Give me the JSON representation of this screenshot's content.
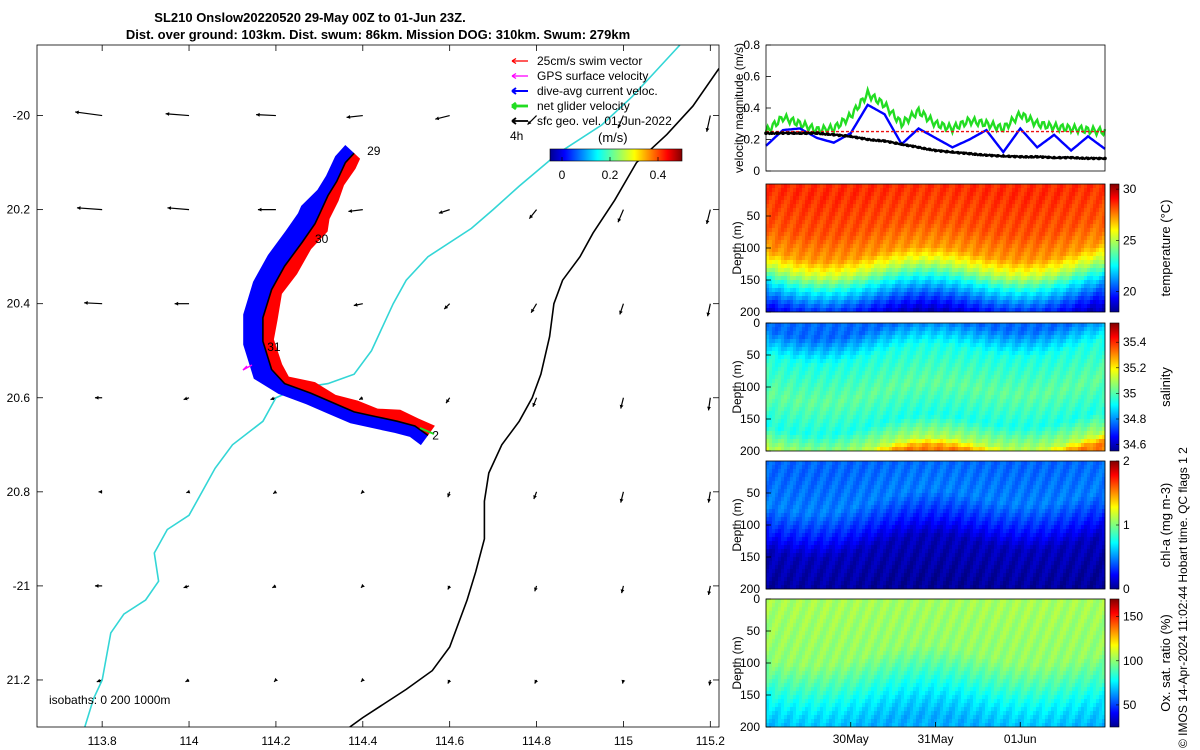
{
  "title": {
    "line1": "SL210 Onslow20220520 29-May 00Z to 01-Jun 23Z.",
    "line2": "Dist. over ground: 103km. Dist. swum: 86km. Mission DOG: 310km. Swum: 279km"
  },
  "side_text": "© IMOS 14-Apr-2024 11:02:44 Hobart time. QC flags 1  2",
  "colors": {
    "swim": "#ff0000",
    "gps": "#ff00ff",
    "dive": "#0000ff",
    "net": "#22dd22",
    "geo": "#000000",
    "isobath_shallow": "#33d6d6",
    "isobath_deep": "#000000",
    "ribbon_blue": "#0000ff",
    "ribbon_red": "#ff0000"
  },
  "chart_data": [
    {
      "type": "map",
      "xlim": [
        113.65,
        115.22
      ],
      "ylim": [
        -21.3,
        -19.85
      ],
      "x_ticks": [
        113.8,
        114,
        114.2,
        114.4,
        114.6,
        114.8,
        115,
        115.2
      ],
      "x_tick_labels": [
        "113.8",
        "114",
        "114.2",
        "114.4",
        "114.6",
        "114.8",
        "115",
        "115.2"
      ],
      "y_ticks": [
        -20,
        -20.2,
        -20.4,
        -20.6,
        -20.8,
        -21,
        -21.2
      ],
      "y_tick_labels": [
        "-20",
        "20.2",
        "20.4",
        "20.6",
        "20.8",
        "-21",
        "21.2"
      ],
      "legend": {
        "placement": "top-right",
        "entries": [
          "25cm/s swim vector",
          "GPS surface velocity",
          "dive-avg current veloc.",
          "net glider velocity",
          "sfc geo. vel. 01-Jun-2022"
        ],
        "interval": "4h",
        "colorbar_unit": "(m/s)",
        "colorbar_ticks": [
          0,
          0.2,
          0.4
        ],
        "colorbar_tick_labels": [
          "0",
          "0.2",
          "0.4"
        ],
        "colorbar_range": [
          -0.05,
          0.5
        ]
      },
      "isobath_label": "isobaths: 0   200   1000m",
      "day_labels": [
        {
          "text": "29",
          "lon": 114.41,
          "lat": -20.075
        },
        {
          "text": "30",
          "lon": 114.29,
          "lat": -20.262
        },
        {
          "text": "31",
          "lon": 114.18,
          "lat": -20.492
        },
        {
          "text": "2",
          "lon": 114.56,
          "lat": -20.68
        }
      ],
      "track": [
        {
          "lon": 114.38,
          "lat": -20.08
        },
        {
          "lon": 114.36,
          "lat": -20.1
        },
        {
          "lon": 114.34,
          "lat": -20.14
        },
        {
          "lon": 114.32,
          "lat": -20.17
        },
        {
          "lon": 114.3,
          "lat": -20.21
        },
        {
          "lon": 114.29,
          "lat": -20.23
        },
        {
          "lon": 114.26,
          "lat": -20.27
        },
        {
          "lon": 114.22,
          "lat": -20.32
        },
        {
          "lon": 114.19,
          "lat": -20.37
        },
        {
          "lon": 114.17,
          "lat": -20.43
        },
        {
          "lon": 114.17,
          "lat": -20.48
        },
        {
          "lon": 114.19,
          "lat": -20.54
        },
        {
          "lon": 114.22,
          "lat": -20.57
        },
        {
          "lon": 114.28,
          "lat": -20.59
        },
        {
          "lon": 114.33,
          "lat": -20.61
        },
        {
          "lon": 114.38,
          "lat": -20.63
        },
        {
          "lon": 114.43,
          "lat": -20.64
        },
        {
          "lon": 114.48,
          "lat": -20.65
        },
        {
          "lon": 114.52,
          "lat": -20.66
        },
        {
          "lon": 114.55,
          "lat": -20.68
        }
      ],
      "isobath_200m": [
        {
          "lon": 115.13,
          "lat": -19.85
        },
        {
          "lon": 115.08,
          "lat": -19.9
        },
        {
          "lon": 115.02,
          "lat": -19.96
        },
        {
          "lon": 114.95,
          "lat": -20.02
        },
        {
          "lon": 114.85,
          "lat": -20.08
        },
        {
          "lon": 114.76,
          "lat": -20.15
        },
        {
          "lon": 114.7,
          "lat": -20.2
        },
        {
          "lon": 114.65,
          "lat": -20.24
        },
        {
          "lon": 114.55,
          "lat": -20.3
        },
        {
          "lon": 114.5,
          "lat": -20.35
        },
        {
          "lon": 114.47,
          "lat": -20.4
        },
        {
          "lon": 114.42,
          "lat": -20.5
        },
        {
          "lon": 114.38,
          "lat": -20.55
        },
        {
          "lon": 114.32,
          "lat": -20.57
        },
        {
          "lon": 114.25,
          "lat": -20.58
        },
        {
          "lon": 114.2,
          "lat": -20.6
        },
        {
          "lon": 114.17,
          "lat": -20.65
        },
        {
          "lon": 114.1,
          "lat": -20.7
        },
        {
          "lon": 114.06,
          "lat": -20.75
        },
        {
          "lon": 114.03,
          "lat": -20.8
        },
        {
          "lon": 114.0,
          "lat": -20.85
        },
        {
          "lon": 113.95,
          "lat": -20.88
        },
        {
          "lon": 113.92,
          "lat": -20.93
        },
        {
          "lon": 113.93,
          "lat": -20.99
        },
        {
          "lon": 113.9,
          "lat": -21.03
        },
        {
          "lon": 113.85,
          "lat": -21.06
        },
        {
          "lon": 113.82,
          "lat": -21.1
        },
        {
          "lon": 113.81,
          "lat": -21.15
        },
        {
          "lon": 113.8,
          "lat": -21.2
        },
        {
          "lon": 113.78,
          "lat": -21.24
        },
        {
          "lon": 113.76,
          "lat": -21.3
        }
      ],
      "isobath_1000m": [
        {
          "lon": 115.22,
          "lat": -19.9
        },
        {
          "lon": 115.16,
          "lat": -19.98
        },
        {
          "lon": 115.1,
          "lat": -20.04
        },
        {
          "lon": 115.03,
          "lat": -20.1
        },
        {
          "lon": 114.98,
          "lat": -20.18
        },
        {
          "lon": 114.93,
          "lat": -20.25
        },
        {
          "lon": 114.9,
          "lat": -20.3
        },
        {
          "lon": 114.86,
          "lat": -20.35
        },
        {
          "lon": 114.84,
          "lat": -20.4
        },
        {
          "lon": 114.83,
          "lat": -20.47
        },
        {
          "lon": 114.81,
          "lat": -20.55
        },
        {
          "lon": 114.79,
          "lat": -20.6
        },
        {
          "lon": 114.76,
          "lat": -20.65
        },
        {
          "lon": 114.72,
          "lat": -20.7
        },
        {
          "lon": 114.69,
          "lat": -20.76
        },
        {
          "lon": 114.68,
          "lat": -20.82
        },
        {
          "lon": 114.68,
          "lat": -20.9
        },
        {
          "lon": 114.66,
          "lat": -20.97
        },
        {
          "lon": 114.64,
          "lat": -21.03
        },
        {
          "lon": 114.62,
          "lat": -21.08
        },
        {
          "lon": 114.6,
          "lat": -21.13
        },
        {
          "lon": 114.56,
          "lat": -21.18
        },
        {
          "lon": 114.5,
          "lat": -21.22
        },
        {
          "lon": 114.45,
          "lat": -21.25
        },
        {
          "lon": 114.4,
          "lat": -21.28
        },
        {
          "lon": 114.37,
          "lat": -21.3
        }
      ],
      "vector_field": {
        "lons": [
          113.8,
          114.0,
          114.2,
          114.4,
          114.6,
          114.8,
          115.0,
          115.2
        ],
        "lats": [
          -20.0,
          -20.2,
          -20.4,
          -20.6,
          -20.8,
          -21.0,
          -21.2
        ],
        "u": [
          [
            -0.15,
            -0.13,
            -0.11,
            -0.09,
            -0.08,
            -0.05,
            -0.03,
            -0.02
          ],
          [
            -0.14,
            -0.12,
            -0.1,
            -0.08,
            -0.06,
            -0.04,
            -0.03,
            -0.02
          ],
          [
            -0.1,
            -0.08,
            -0.06,
            -0.05,
            -0.03,
            -0.03,
            -0.02,
            -0.015
          ],
          [
            -0.04,
            -0.03,
            -0.03,
            -0.02,
            -0.02,
            -0.02,
            -0.015,
            -0.01
          ],
          [
            -0.02,
            -0.015,
            -0.015,
            -0.01,
            -0.01,
            -0.015,
            -0.015,
            -0.01
          ],
          [
            -0.04,
            -0.03,
            -0.02,
            -0.01,
            -0.01,
            -0.01,
            -0.01,
            -0.01
          ],
          [
            -0.03,
            -0.02,
            -0.01,
            -0.01,
            -0.01,
            -0.01,
            -0.005,
            -0.005
          ]
        ],
        "v": [
          [
            0.02,
            0.01,
            0.005,
            -0.01,
            -0.02,
            -0.05,
            -0.07,
            -0.09
          ],
          [
            0.01,
            0.01,
            0.0,
            -0.01,
            -0.02,
            -0.05,
            -0.07,
            -0.08
          ],
          [
            0.005,
            0.0,
            -0.005,
            -0.01,
            -0.03,
            -0.05,
            -0.06,
            -0.07
          ],
          [
            0.0,
            -0.01,
            -0.01,
            -0.01,
            -0.03,
            -0.05,
            -0.06,
            -0.07
          ],
          [
            0.0,
            -0.005,
            -0.01,
            -0.01,
            -0.03,
            -0.04,
            -0.06,
            -0.06
          ],
          [
            0.0,
            -0.01,
            -0.01,
            -0.01,
            -0.02,
            -0.03,
            -0.04,
            -0.05
          ],
          [
            -0.01,
            -0.01,
            -0.01,
            -0.01,
            -0.02,
            -0.02,
            -0.02,
            -0.03
          ]
        ]
      }
    },
    {
      "type": "line",
      "ylabel": "velocity magnitude (m/s)",
      "ylim": [
        0,
        0.8
      ],
      "y_ticks": [
        0,
        0.2,
        0.4,
        0.6,
        0.8
      ],
      "y_tick_labels": [
        "0",
        "0.2",
        "0.4",
        "0.6",
        "0.8"
      ],
      "xlim": [
        29.0,
        33.0
      ],
      "x": [
        29.0,
        29.2,
        29.4,
        29.6,
        29.8,
        30.0,
        30.2,
        30.4,
        30.6,
        30.8,
        31.0,
        31.2,
        31.4,
        31.6,
        31.8,
        32.0,
        32.2,
        32.4,
        32.6,
        32.8,
        33.0
      ],
      "series": [
        {
          "color": "#22dd22",
          "values": [
            0.25,
            0.34,
            0.3,
            0.26,
            0.27,
            0.35,
            0.49,
            0.42,
            0.3,
            0.38,
            0.3,
            0.27,
            0.32,
            0.3,
            0.27,
            0.36,
            0.3,
            0.28,
            0.27,
            0.26,
            0.25
          ]
        },
        {
          "color": "#0000ff",
          "values": [
            0.16,
            0.26,
            0.27,
            0.21,
            0.18,
            0.24,
            0.42,
            0.36,
            0.17,
            0.27,
            0.21,
            0.15,
            0.2,
            0.26,
            0.12,
            0.27,
            0.15,
            0.23,
            0.13,
            0.22,
            0.14
          ]
        },
        {
          "color": "#ee1111",
          "values": [
            0.25,
            0.25,
            0.25,
            0.25,
            0.25,
            0.25,
            0.25,
            0.25,
            0.25,
            0.25,
            0.25,
            0.25,
            0.25,
            0.25,
            0.25,
            0.25,
            0.25,
            0.25,
            0.25,
            0.25,
            0.25
          ]
        },
        {
          "color": "#000000",
          "values": [
            0.24,
            0.24,
            0.24,
            0.24,
            0.23,
            0.22,
            0.2,
            0.19,
            0.17,
            0.15,
            0.13,
            0.12,
            0.11,
            0.1,
            0.095,
            0.09,
            0.09,
            0.085,
            0.085,
            0.08,
            0.08
          ]
        }
      ]
    },
    {
      "type": "heatmap",
      "ylabel": "Depth (m)",
      "colorbar_label": "temperature (°C)",
      "ylim": [
        0,
        200
      ],
      "y_ticks": [
        50,
        100,
        150,
        200
      ],
      "y_tick_labels": [
        "50",
        "100",
        "150",
        "200"
      ],
      "colorbar_range": [
        18,
        30.5
      ],
      "colorbar_ticks": [
        20,
        25,
        30
      ],
      "colorbar_tick_labels": [
        "20",
        "25",
        "30"
      ],
      "depth_profile": [
        {
          "depth": 0,
          "value": 28.4
        },
        {
          "depth": 60,
          "value": 27.9
        },
        {
          "depth": 100,
          "value": 27.0
        },
        {
          "depth": 125,
          "value": 25.0
        },
        {
          "depth": 150,
          "value": 22.5
        },
        {
          "depth": 175,
          "value": 20.5
        },
        {
          "depth": 200,
          "value": 18.8
        }
      ]
    },
    {
      "type": "heatmap",
      "ylabel": "Depth (m)",
      "colorbar_label": "salinity",
      "ylim": [
        0,
        200
      ],
      "y_ticks": [
        0,
        50,
        100,
        150,
        200
      ],
      "y_tick_labels": [
        "0",
        "50",
        "100",
        "150",
        "200"
      ],
      "colorbar_range": [
        34.55,
        35.55
      ],
      "colorbar_ticks": [
        34.6,
        34.8,
        35,
        35.2,
        35.4
      ],
      "colorbar_tick_labels": [
        "34.6",
        "34.8",
        "35",
        "35.2",
        "35.4"
      ],
      "depth_profile": [
        {
          "depth": 0,
          "value": 34.78
        },
        {
          "depth": 40,
          "value": 34.95
        },
        {
          "depth": 100,
          "value": 35.02
        },
        {
          "depth": 150,
          "value": 34.95
        },
        {
          "depth": 185,
          "value": 35.1
        },
        {
          "depth": 200,
          "value": 35.3
        }
      ]
    },
    {
      "type": "heatmap",
      "ylabel": "Depth (m)",
      "colorbar_label": "chl-a (mg m-3)",
      "ylim": [
        0,
        200
      ],
      "y_ticks": [
        50,
        100,
        150,
        200
      ],
      "y_tick_labels": [
        "50",
        "100",
        "150",
        "200"
      ],
      "colorbar_range": [
        0,
        2
      ],
      "colorbar_ticks": [
        0,
        1,
        2
      ],
      "colorbar_tick_labels": [
        "0",
        "1",
        "2"
      ],
      "depth_profile": [
        {
          "depth": 0,
          "value": 0.45
        },
        {
          "depth": 60,
          "value": 0.5
        },
        {
          "depth": 100,
          "value": 0.3
        },
        {
          "depth": 130,
          "value": 0.12
        },
        {
          "depth": 200,
          "value": 0.05
        }
      ]
    },
    {
      "type": "heatmap",
      "ylabel": "Depth (m)",
      "colorbar_label": "Ox. sat. ratio (%)",
      "ylim": [
        0,
        200
      ],
      "y_ticks": [
        0,
        50,
        100,
        150,
        200
      ],
      "y_tick_labels": [
        "0",
        "50",
        "100",
        "150",
        "200"
      ],
      "colorbar_range": [
        25,
        170
      ],
      "colorbar_ticks": [
        50,
        100,
        150
      ],
      "colorbar_tick_labels": [
        "50",
        "100",
        "150"
      ],
      "x_tick_labels": [
        "30May",
        "31May",
        "01Jun"
      ],
      "x_ticks": [
        30,
        31,
        32
      ],
      "xlim": [
        29.0,
        33.0
      ],
      "depth_profile": [
        {
          "depth": 0,
          "value": 103
        },
        {
          "depth": 90,
          "value": 100
        },
        {
          "depth": 130,
          "value": 88
        },
        {
          "depth": 170,
          "value": 75
        },
        {
          "depth": 200,
          "value": 68
        }
      ]
    }
  ]
}
